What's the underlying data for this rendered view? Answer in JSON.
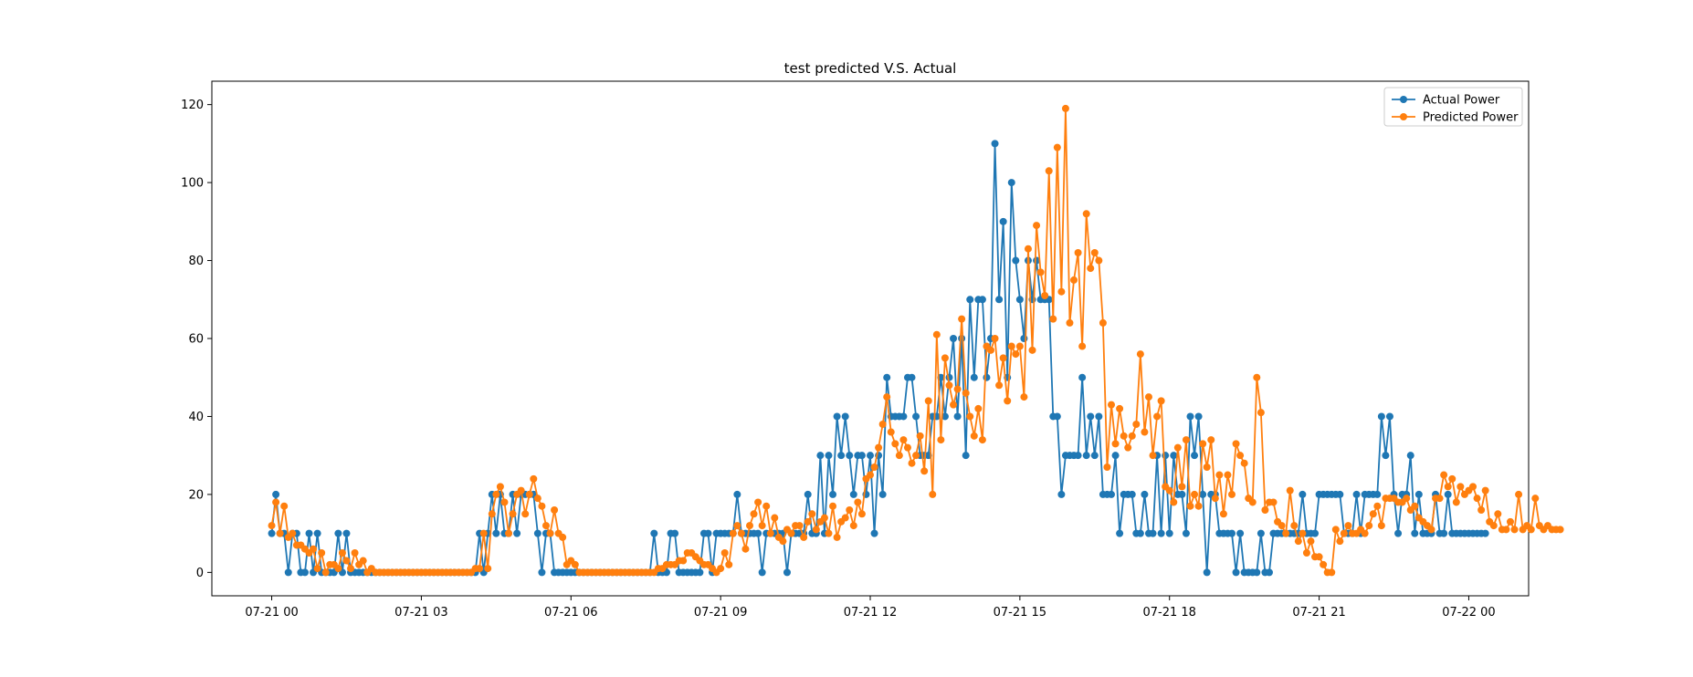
{
  "chart_data": {
    "type": "line",
    "title": "test predicted V.S. Actual",
    "xlabel": "",
    "ylabel": "",
    "x_range": [
      "07-20 22:48",
      "07-22 01:12"
    ],
    "ylim": [
      -6,
      126
    ],
    "x_ticks": [
      {
        "t": "07-21 00:00",
        "label": "07-21 00"
      },
      {
        "t": "07-21 03:00",
        "label": "07-21 03"
      },
      {
        "t": "07-21 06:00",
        "label": "07-21 06"
      },
      {
        "t": "07-21 09:00",
        "label": "07-21 09"
      },
      {
        "t": "07-21 12:00",
        "label": "07-21 12"
      },
      {
        "t": "07-21 15:00",
        "label": "07-21 15"
      },
      {
        "t": "07-21 18:00",
        "label": "07-21 18"
      },
      {
        "t": "07-21 21:00",
        "label": "07-21 21"
      },
      {
        "t": "07-22 00:00",
        "label": "07-22 00"
      }
    ],
    "y_ticks": [
      0,
      20,
      40,
      60,
      80,
      100,
      120
    ],
    "sample_interval_minutes": 5,
    "start": "07-21 00:00",
    "grid": false,
    "legend_position": "top-right",
    "series": [
      {
        "name": "Actual Power",
        "color": "#1f77b4",
        "marker": "circle",
        "values": [
          10,
          20,
          10,
          10,
          0,
          10,
          10,
          0,
          0,
          10,
          0,
          10,
          0,
          0,
          0,
          0,
          10,
          0,
          10,
          0,
          0,
          0,
          0,
          0,
          0,
          0,
          0,
          0,
          0,
          0,
          0,
          0,
          0,
          0,
          0,
          0,
          0,
          0,
          0,
          0,
          0,
          0,
          0,
          0,
          0,
          0,
          0,
          0,
          0,
          0,
          10,
          0,
          10,
          20,
          10,
          20,
          10,
          10,
          20,
          10,
          20,
          20,
          20,
          20,
          10,
          0,
          10,
          10,
          0,
          0,
          0,
          0,
          0,
          0,
          0,
          0,
          0,
          0,
          0,
          0,
          0,
          0,
          0,
          0,
          0,
          0,
          0,
          0,
          0,
          0,
          0,
          0,
          10,
          0,
          0,
          0,
          10,
          10,
          0,
          0,
          0,
          0,
          0,
          0,
          10,
          10,
          0,
          10,
          10,
          10,
          10,
          10,
          20,
          10,
          10,
          10,
          10,
          10,
          0,
          10,
          10,
          10,
          10,
          10,
          0,
          10,
          10,
          10,
          10,
          20,
          10,
          10,
          30,
          10,
          30,
          20,
          40,
          30,
          40,
          30,
          20,
          30,
          30,
          20,
          30,
          10,
          30,
          20,
          50,
          40,
          40,
          40,
          40,
          50,
          50,
          40,
          30,
          30,
          30,
          40,
          40,
          50,
          40,
          50,
          60,
          40,
          60,
          30,
          70,
          50,
          70,
          70,
          50,
          60,
          110,
          70,
          90,
          50,
          100,
          80,
          70,
          60,
          80,
          70,
          80,
          70,
          70,
          70,
          40,
          40,
          20,
          30,
          30,
          30,
          30,
          50,
          30,
          40,
          30,
          40,
          20,
          20,
          20,
          30,
          10,
          20,
          20,
          20,
          10,
          10,
          20,
          10,
          10,
          30,
          10,
          30,
          10,
          30,
          20,
          20,
          10,
          40,
          30,
          40,
          20,
          0,
          20,
          20,
          10,
          10,
          10,
          10,
          0,
          10,
          0,
          0,
          0,
          0,
          10,
          0,
          0,
          10,
          10,
          10,
          10,
          10,
          10,
          10,
          20,
          10,
          10,
          10,
          20,
          20,
          20,
          20,
          20,
          20,
          10,
          10,
          10,
          20,
          10,
          20,
          20,
          20,
          20,
          40,
          30,
          40,
          20,
          10,
          20,
          20,
          30,
          10,
          20,
          10,
          10,
          10,
          20,
          10,
          10,
          20,
          10,
          10,
          10,
          10,
          10,
          10,
          10,
          10,
          10
        ]
      },
      {
        "name": "Predicted Power",
        "color": "#ff7f0e",
        "marker": "circle",
        "values": [
          12,
          18,
          10,
          17,
          9,
          10,
          7,
          7,
          6,
          5,
          6,
          1,
          5,
          0,
          2,
          2,
          1,
          5,
          3,
          1,
          5,
          2,
          3,
          0,
          1,
          0,
          0,
          0,
          0,
          0,
          0,
          0,
          0,
          0,
          0,
          0,
          0,
          0,
          0,
          0,
          0,
          0,
          0,
          0,
          0,
          0,
          0,
          0,
          0,
          1,
          1,
          10,
          1,
          15,
          20,
          22,
          18,
          10,
          15,
          20,
          21,
          15,
          20,
          24,
          19,
          17,
          12,
          10,
          16,
          10,
          9,
          2,
          3,
          2,
          0,
          0,
          0,
          0,
          0,
          0,
          0,
          0,
          0,
          0,
          0,
          0,
          0,
          0,
          0,
          0,
          0,
          0,
          0,
          1,
          1,
          2,
          2,
          2,
          3,
          3,
          5,
          5,
          4,
          3,
          2,
          2,
          1,
          0,
          1,
          5,
          2,
          10,
          12,
          10,
          6,
          12,
          15,
          18,
          12,
          17,
          10,
          14,
          9,
          8,
          11,
          10,
          12,
          12,
          9,
          13,
          15,
          11,
          13,
          14,
          10,
          17,
          9,
          13,
          14,
          16,
          12,
          18,
          15,
          24,
          25,
          27,
          32,
          38,
          45,
          36,
          33,
          30,
          34,
          32,
          28,
          30,
          35,
          26,
          44,
          20,
          61,
          34,
          55,
          48,
          43,
          47,
          65,
          46,
          40,
          35,
          42,
          34,
          58,
          57,
          60,
          48,
          55,
          44,
          58,
          56,
          58,
          45,
          83,
          57,
          89,
          77,
          71,
          103,
          65,
          109,
          72,
          119,
          64,
          75,
          82,
          58,
          92,
          78,
          82,
          80,
          64,
          27,
          43,
          33,
          42,
          35,
          32,
          35,
          38,
          56,
          36,
          45,
          30,
          40,
          44,
          22,
          21,
          18,
          32,
          22,
          34,
          17,
          20,
          17,
          33,
          27,
          34,
          19,
          25,
          15,
          25,
          20,
          33,
          30,
          28,
          19,
          18,
          50,
          41,
          16,
          18,
          18,
          13,
          12,
          10,
          21,
          12,
          8,
          10,
          5,
          8,
          4,
          4,
          2,
          0,
          0,
          11,
          8,
          10,
          12,
          10,
          10,
          11,
          10,
          12,
          15,
          17,
          12,
          19,
          19,
          19,
          18,
          18,
          19,
          16,
          17,
          14,
          13,
          12,
          11,
          19,
          19,
          25,
          22,
          24,
          18,
          22,
          20,
          21,
          22,
          19,
          16,
          21,
          13,
          12,
          15,
          11,
          11,
          13,
          11,
          20,
          11,
          12,
          11,
          19,
          12,
          11,
          12,
          11,
          11,
          11
        ]
      }
    ]
  }
}
